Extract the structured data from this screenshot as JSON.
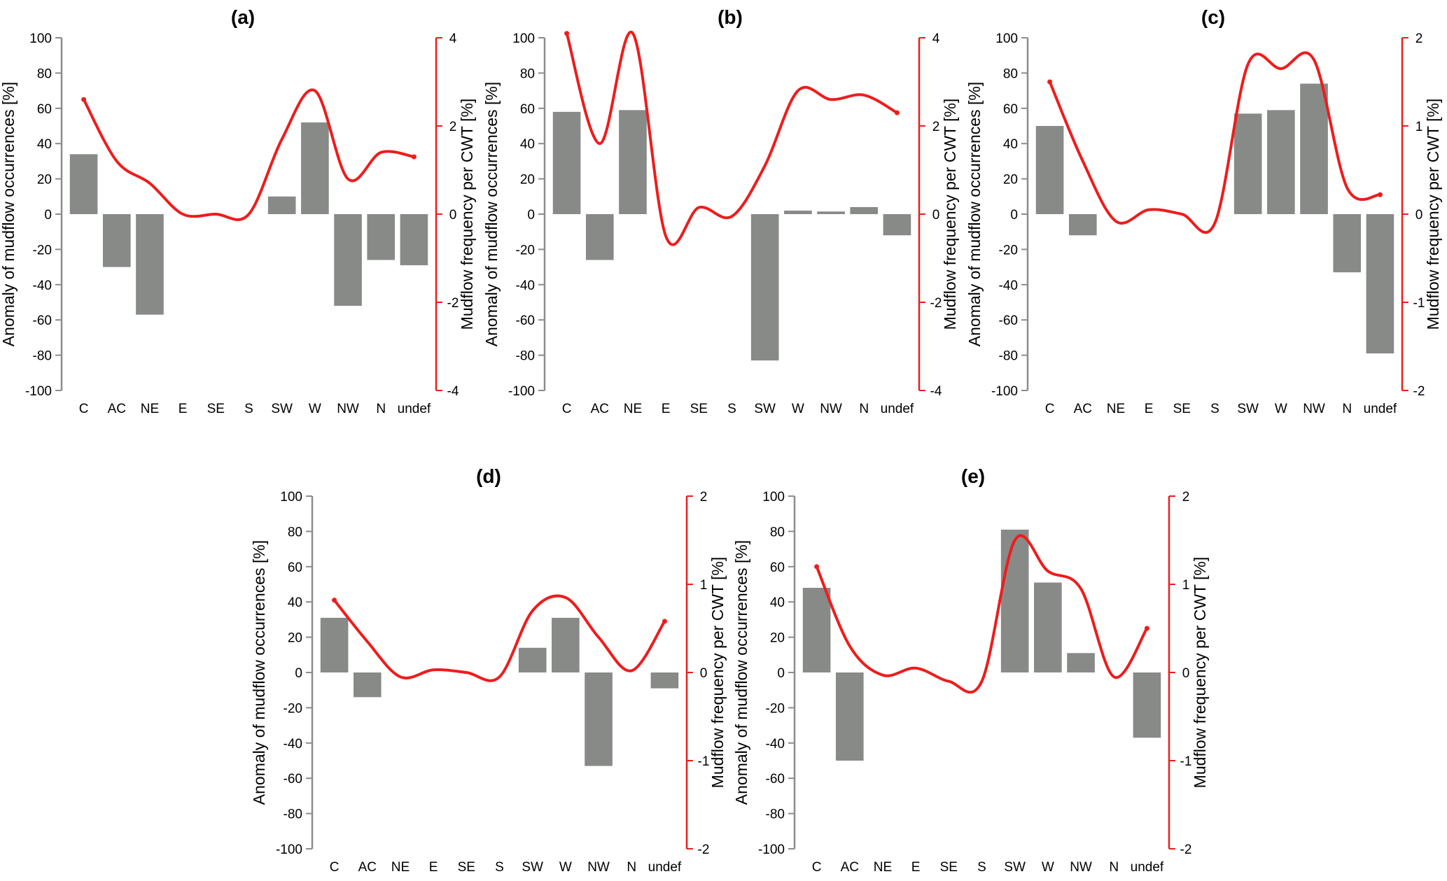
{
  "figure": {
    "colors": {
      "bar": "#888a88",
      "line": "#ee1c1c",
      "left_axis": "#8c8c8c",
      "right_axis": "#ee1c1c"
    }
  },
  "chart_data": [
    {
      "type": "bar",
      "title": "(a)",
      "ylabel": "Anomaly of mudflow occurrences [%]",
      "y2label": "Mudflow frequency per CWT [%]",
      "categories": [
        "C",
        "AC",
        "NE",
        "E",
        "SE",
        "S",
        "SW",
        "W",
        "NW",
        "N",
        "undef"
      ],
      "ylim": [
        -100,
        100
      ],
      "yticks": [
        100,
        80,
        60,
        40,
        20,
        0,
        -20,
        -40,
        -60,
        -80,
        -100
      ],
      "y2lim": [
        -4,
        4
      ],
      "y2ticks": [
        4,
        2,
        0,
        -2,
        -4
      ],
      "series": [
        {
          "kind": "bar",
          "axis": "left",
          "values": [
            34,
            -30,
            -57,
            0,
            0,
            0,
            10,
            52,
            -52,
            -26,
            -29
          ]
        },
        {
          "kind": "line",
          "axis": "right",
          "values": [
            2.6,
            1.2,
            0.7,
            0.0,
            0.0,
            0.0,
            1.7,
            2.8,
            0.8,
            1.4,
            1.3
          ]
        }
      ]
    },
    {
      "type": "bar",
      "title": "(b)",
      "ylabel": "Anomaly of mudflow occurrences [%]",
      "y2label": "Mudflow frequency per CWT [%]",
      "categories": [
        "C",
        "AC",
        "NE",
        "E",
        "SE",
        "S",
        "SW",
        "W",
        "NW",
        "N",
        "undef"
      ],
      "ylim": [
        -100,
        100
      ],
      "yticks": [
        100,
        80,
        60,
        40,
        20,
        0,
        -20,
        -40,
        -60,
        -80,
        -100
      ],
      "y2lim": [
        -4,
        4
      ],
      "y2ticks": [
        4,
        2,
        0,
        -2,
        -4
      ],
      "series": [
        {
          "kind": "bar",
          "axis": "left",
          "values": [
            58,
            -26,
            59,
            0,
            0,
            0,
            -83,
            2,
            1.5,
            4,
            -12
          ]
        },
        {
          "kind": "line",
          "axis": "right",
          "values": [
            4.1,
            1.6,
            4.1,
            -0.5,
            0.15,
            -0.05,
            1.1,
            2.8,
            2.6,
            2.7,
            2.3
          ]
        }
      ]
    },
    {
      "type": "bar",
      "title": "(c)",
      "ylabel": "Anomaly of mudflow occurrences [%]",
      "y2label": "Mudflow frequency per CWT [%]",
      "categories": [
        "C",
        "AC",
        "NE",
        "E",
        "SE",
        "S",
        "SW",
        "W",
        "NW",
        "N",
        "undef"
      ],
      "ylim": [
        -100,
        100
      ],
      "yticks": [
        100,
        80,
        60,
        40,
        20,
        0,
        -20,
        -40,
        -60,
        -80,
        -100
      ],
      "y2lim": [
        -2,
        2
      ],
      "y2ticks": [
        2,
        1,
        0,
        -1,
        -2
      ],
      "series": [
        {
          "kind": "bar",
          "axis": "left",
          "values": [
            50,
            -12,
            0,
            0,
            0,
            0,
            57,
            59,
            74,
            -33,
            -79
          ]
        },
        {
          "kind": "line",
          "axis": "right",
          "values": [
            1.5,
            0.6,
            -0.08,
            0.05,
            0.0,
            -0.1,
            1.7,
            1.65,
            1.75,
            0.3,
            0.22
          ]
        }
      ]
    },
    {
      "type": "bar",
      "title": "(d)",
      "ylabel": "Anomaly of mudflow occurrences [%]",
      "y2label": "Mudflow frequency per CWT [%]",
      "categories": [
        "C",
        "AC",
        "NE",
        "E",
        "SE",
        "S",
        "SW",
        "W",
        "NW",
        "N",
        "undef"
      ],
      "ylim": [
        -100,
        100
      ],
      "yticks": [
        100,
        80,
        60,
        40,
        20,
        0,
        -20,
        -40,
        -60,
        -80,
        -100
      ],
      "y2lim": [
        -2,
        2
      ],
      "y2ticks": [
        2,
        1,
        0,
        -1,
        -2
      ],
      "series": [
        {
          "kind": "bar",
          "axis": "left",
          "values": [
            31,
            -14,
            0,
            0,
            0,
            0,
            14,
            31,
            -53,
            0,
            -9
          ]
        },
        {
          "kind": "line",
          "axis": "right",
          "values": [
            0.82,
            0.35,
            -0.05,
            0.03,
            0.0,
            -0.05,
            0.7,
            0.85,
            0.4,
            0.02,
            0.58
          ]
        }
      ]
    },
    {
      "type": "bar",
      "title": "(e)",
      "ylabel": "Anomaly of mudflow occurrences [%]",
      "y2label": "Mudflow frequency per CWT [%]",
      "categories": [
        "C",
        "AC",
        "NE",
        "E",
        "SE",
        "S",
        "SW",
        "W",
        "NW",
        "N",
        "undef"
      ],
      "ylim": [
        -100,
        100
      ],
      "yticks": [
        100,
        80,
        60,
        40,
        20,
        0,
        -20,
        -40,
        -60,
        -80,
        -100
      ],
      "y2lim": [
        -2,
        2
      ],
      "y2ticks": [
        2,
        1,
        0,
        -1,
        -2
      ],
      "series": [
        {
          "kind": "bar",
          "axis": "left",
          "values": [
            48,
            -50,
            0,
            0,
            0,
            0,
            81,
            51,
            11,
            0,
            -37
          ]
        },
        {
          "kind": "line",
          "axis": "right",
          "values": [
            1.2,
            0.3,
            -0.03,
            0.05,
            -0.1,
            -0.1,
            1.5,
            1.15,
            0.95,
            -0.05,
            0.5
          ]
        }
      ]
    }
  ]
}
